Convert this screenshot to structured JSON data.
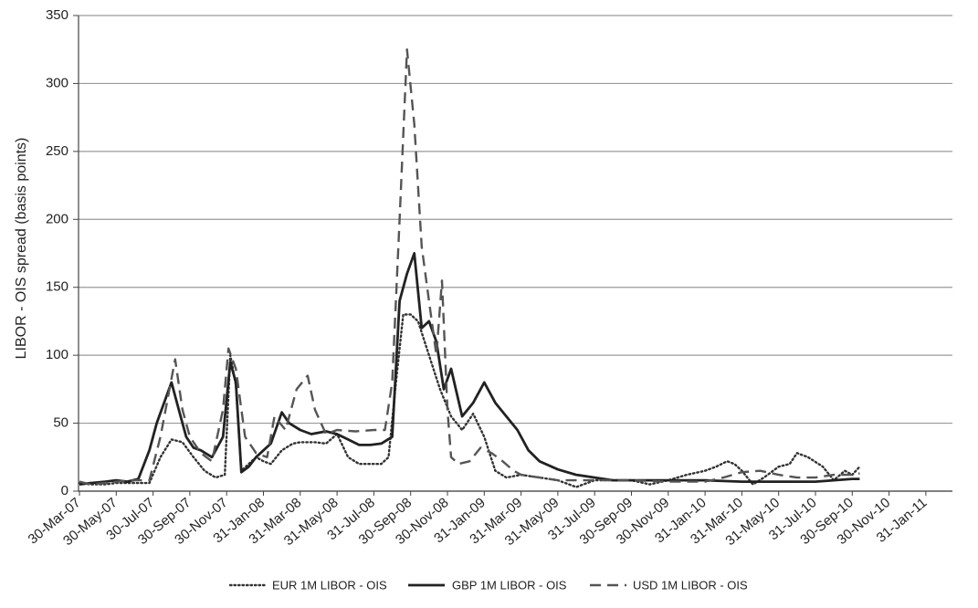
{
  "chart_data": {
    "type": "line",
    "title": "",
    "xlabel": "",
    "ylabel": "LIBOR - OIS spread (basis points)",
    "ylim": [
      0,
      350
    ],
    "yticks": [
      "0",
      "50",
      "100",
      "150",
      "200",
      "250",
      "300",
      "350"
    ],
    "xticks": [
      "30-Mar-07",
      "30-May-07",
      "30-Jul-07",
      "30-Sep-07",
      "30-Nov-07",
      "31-Jan-08",
      "31-Mar-08",
      "31-May-08",
      "31-Jul-08",
      "30-Sep-08",
      "30-Nov-08",
      "31-Jan-09",
      "31-Mar-09",
      "31-May-09",
      "31-Jul-09",
      "30-Sep-09",
      "30-Nov-09",
      "31-Jan-10",
      "31-Mar-10",
      "31-May-10",
      "31-Jul-10",
      "30-Sep-10",
      "30-Nov-10",
      "31-Jan-11"
    ],
    "grid": true,
    "legend_position": "bottom",
    "series": [
      {
        "name": "EUR 1M LIBOR - OIS",
        "style": "dotted",
        "color": "#333333",
        "values": [
          [
            0,
            6
          ],
          [
            0.3,
            5
          ],
          [
            0.7,
            5
          ],
          [
            1.0,
            6
          ],
          [
            1.5,
            6
          ],
          [
            1.9,
            6
          ],
          [
            2.2,
            25
          ],
          [
            2.5,
            38
          ],
          [
            2.8,
            36
          ],
          [
            3.1,
            25
          ],
          [
            3.4,
            15
          ],
          [
            3.7,
            10
          ],
          [
            3.95,
            12
          ],
          [
            4.1,
            100
          ],
          [
            4.25,
            78
          ],
          [
            4.4,
            15
          ],
          [
            4.6,
            20
          ],
          [
            4.8,
            25
          ],
          [
            5.0,
            22
          ],
          [
            5.2,
            20
          ],
          [
            5.5,
            30
          ],
          [
            5.8,
            35
          ],
          [
            6.0,
            36
          ],
          [
            6.4,
            36
          ],
          [
            6.7,
            35
          ],
          [
            7.0,
            42
          ],
          [
            7.3,
            25
          ],
          [
            7.6,
            20
          ],
          [
            7.9,
            20
          ],
          [
            8.2,
            20
          ],
          [
            8.4,
            25
          ],
          [
            8.6,
            80
          ],
          [
            8.8,
            130
          ],
          [
            9.0,
            130
          ],
          [
            9.2,
            125
          ],
          [
            9.5,
            100
          ],
          [
            9.8,
            75
          ],
          [
            10.1,
            55
          ],
          [
            10.4,
            45
          ],
          [
            10.7,
            57
          ],
          [
            11.0,
            40
          ],
          [
            11.3,
            15
          ],
          [
            11.6,
            10
          ],
          [
            12.0,
            12
          ],
          [
            12.5,
            10
          ],
          [
            13.0,
            8
          ],
          [
            13.5,
            3
          ],
          [
            14.0,
            8
          ],
          [
            14.5,
            8
          ],
          [
            15.0,
            8
          ],
          [
            15.5,
            5
          ],
          [
            16.0,
            8
          ],
          [
            16.5,
            12
          ],
          [
            17.0,
            15
          ],
          [
            17.3,
            18
          ],
          [
            17.6,
            22
          ],
          [
            17.8,
            20
          ],
          [
            18.0,
            15
          ],
          [
            18.3,
            5
          ],
          [
            18.6,
            10
          ],
          [
            19.0,
            18
          ],
          [
            19.3,
            20
          ],
          [
            19.5,
            28
          ],
          [
            19.8,
            25
          ],
          [
            20.2,
            18
          ],
          [
            20.5,
            8
          ],
          [
            20.8,
            15
          ],
          [
            21.0,
            12
          ],
          [
            21.2,
            18
          ]
        ]
      },
      {
        "name": "GBP 1M LIBOR - OIS",
        "style": "solid",
        "color": "#222222",
        "values": [
          [
            0,
            5
          ],
          [
            0.3,
            6
          ],
          [
            0.7,
            7
          ],
          [
            1.0,
            8
          ],
          [
            1.3,
            7
          ],
          [
            1.6,
            9
          ],
          [
            1.9,
            30
          ],
          [
            2.1,
            50
          ],
          [
            2.3,
            65
          ],
          [
            2.5,
            80
          ],
          [
            2.7,
            60
          ],
          [
            2.9,
            40
          ],
          [
            3.1,
            32
          ],
          [
            3.3,
            30
          ],
          [
            3.6,
            25
          ],
          [
            3.9,
            40
          ],
          [
            4.1,
            95
          ],
          [
            4.25,
            80
          ],
          [
            4.4,
            14
          ],
          [
            4.6,
            18
          ],
          [
            4.8,
            25
          ],
          [
            5.0,
            30
          ],
          [
            5.2,
            35
          ],
          [
            5.5,
            58
          ],
          [
            5.7,
            50
          ],
          [
            6.0,
            45
          ],
          [
            6.3,
            42
          ],
          [
            6.7,
            44
          ],
          [
            7.0,
            42
          ],
          [
            7.3,
            38
          ],
          [
            7.6,
            34
          ],
          [
            7.9,
            34
          ],
          [
            8.2,
            35
          ],
          [
            8.5,
            40
          ],
          [
            8.7,
            140
          ],
          [
            8.9,
            160
          ],
          [
            9.1,
            175
          ],
          [
            9.3,
            120
          ],
          [
            9.5,
            125
          ],
          [
            9.7,
            110
          ],
          [
            9.9,
            75
          ],
          [
            10.1,
            90
          ],
          [
            10.4,
            55
          ],
          [
            10.7,
            65
          ],
          [
            11.0,
            80
          ],
          [
            11.3,
            65
          ],
          [
            11.6,
            55
          ],
          [
            11.9,
            45
          ],
          [
            12.2,
            30
          ],
          [
            12.5,
            22
          ],
          [
            13.0,
            16
          ],
          [
            13.5,
            12
          ],
          [
            14.0,
            10
          ],
          [
            14.5,
            8
          ],
          [
            15.0,
            8
          ],
          [
            16.0,
            8
          ],
          [
            17.0,
            8
          ],
          [
            18.0,
            7
          ],
          [
            19.0,
            7
          ],
          [
            20.0,
            7
          ],
          [
            20.5,
            8
          ],
          [
            21.0,
            9
          ],
          [
            21.2,
            9
          ]
        ]
      },
      {
        "name": "USD 1M LIBOR - OIS",
        "style": "dashed",
        "color": "#555555",
        "values": [
          [
            0,
            7
          ],
          [
            0.3,
            5
          ],
          [
            0.7,
            6
          ],
          [
            1.0,
            7
          ],
          [
            1.5,
            8
          ],
          [
            1.9,
            8
          ],
          [
            2.2,
            40
          ],
          [
            2.6,
            97
          ],
          [
            2.8,
            60
          ],
          [
            3.0,
            40
          ],
          [
            3.3,
            28
          ],
          [
            3.6,
            22
          ],
          [
            3.9,
            60
          ],
          [
            4.05,
            105
          ],
          [
            4.25,
            90
          ],
          [
            4.5,
            40
          ],
          [
            4.8,
            28
          ],
          [
            5.1,
            25
          ],
          [
            5.3,
            55
          ],
          [
            5.6,
            45
          ],
          [
            5.9,
            75
          ],
          [
            6.2,
            85
          ],
          [
            6.4,
            60
          ],
          [
            6.7,
            42
          ],
          [
            7.0,
            45
          ],
          [
            7.5,
            44
          ],
          [
            8.0,
            45
          ],
          [
            8.3,
            45
          ],
          [
            8.5,
            80
          ],
          [
            8.7,
            200
          ],
          [
            8.9,
            325
          ],
          [
            9.1,
            270
          ],
          [
            9.3,
            180
          ],
          [
            9.5,
            140
          ],
          [
            9.7,
            100
          ],
          [
            9.85,
            155
          ],
          [
            10.0,
            60
          ],
          [
            10.1,
            25
          ],
          [
            10.3,
            20
          ],
          [
            10.6,
            22
          ],
          [
            10.9,
            32
          ],
          [
            11.2,
            28
          ],
          [
            11.5,
            22
          ],
          [
            11.8,
            15
          ],
          [
            12.0,
            12
          ],
          [
            12.5,
            10
          ],
          [
            13.0,
            8
          ],
          [
            14.0,
            8
          ],
          [
            15.0,
            8
          ],
          [
            16.0,
            7
          ],
          [
            17.0,
            7
          ],
          [
            17.5,
            10
          ],
          [
            18.0,
            14
          ],
          [
            18.5,
            15
          ],
          [
            19.0,
            12
          ],
          [
            19.5,
            10
          ],
          [
            20.0,
            10
          ],
          [
            20.5,
            12
          ],
          [
            21.0,
            12
          ],
          [
            21.2,
            13
          ]
        ]
      }
    ]
  }
}
